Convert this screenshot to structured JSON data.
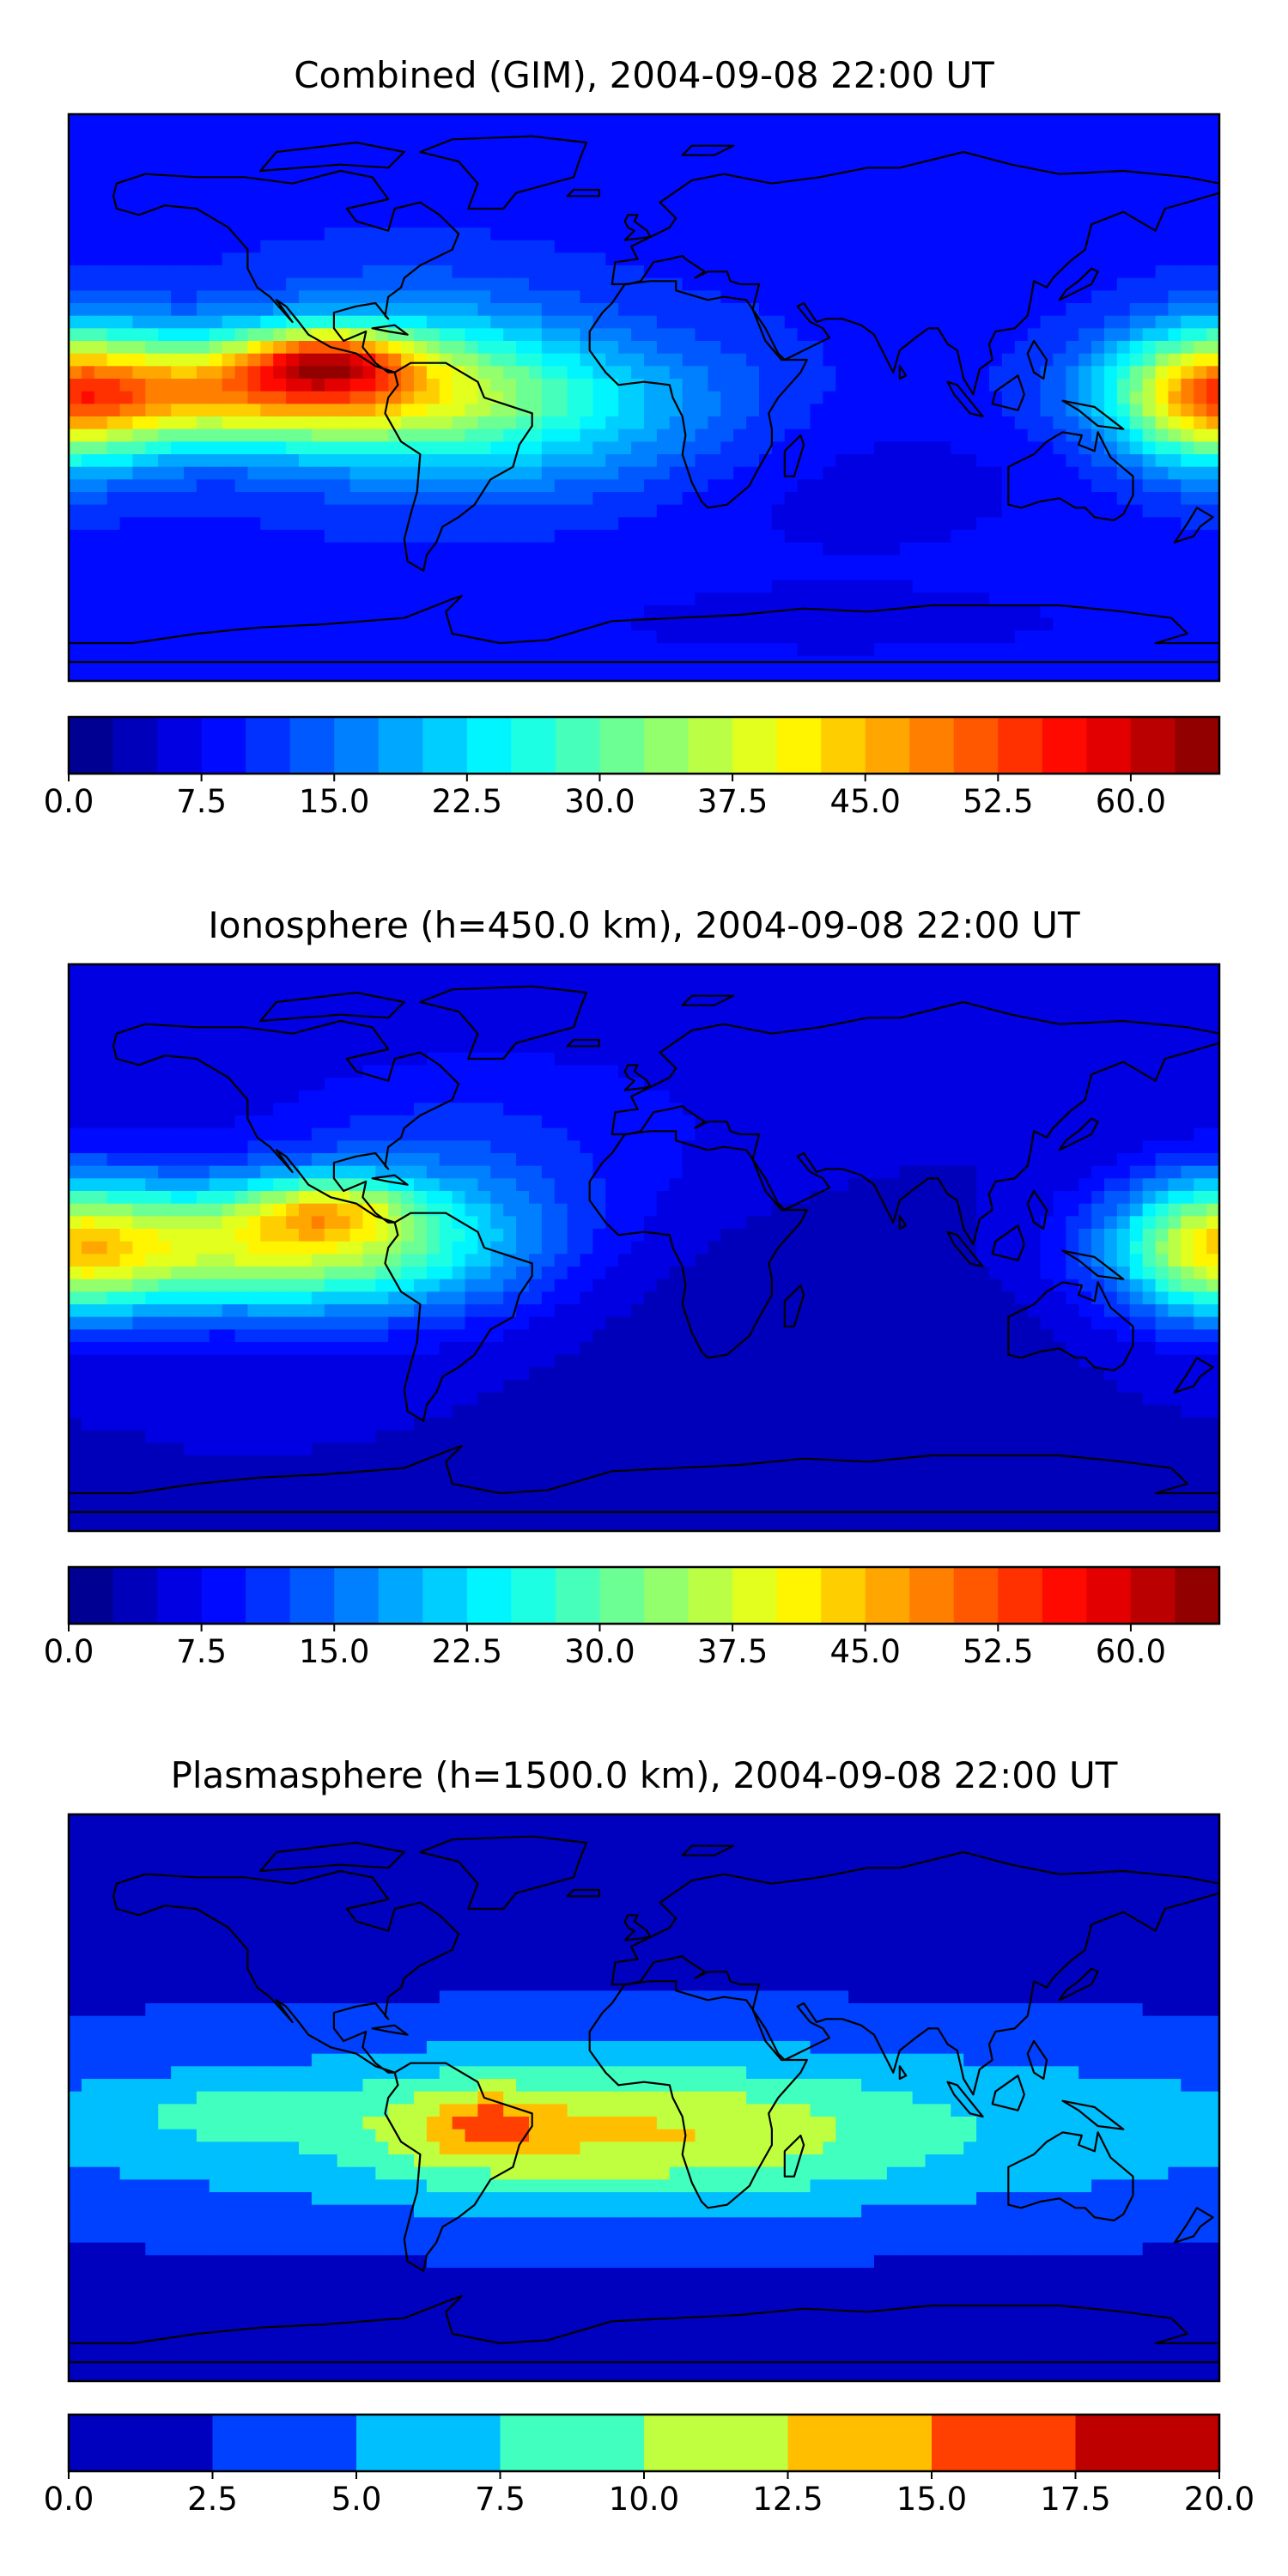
{
  "chart_data": [
    {
      "type": "heatmap",
      "title": "Combined (GIM), 2004-09-08 22:00 UT",
      "xlabel": "",
      "ylabel": "",
      "colormap": "jet",
      "colorbar": {
        "range": [
          0.0,
          64.0
        ],
        "levels": [
          0.0,
          2.5,
          5.0,
          7.5,
          10.0,
          12.5,
          15.0,
          17.5,
          20.0,
          22.5,
          25.0,
          27.5,
          30.0,
          32.5,
          35.0,
          37.5,
          40.0,
          42.5,
          45.0,
          47.5,
          50.0,
          52.5,
          55.0,
          57.5,
          60.0,
          62.5,
          65.0
        ],
        "ticks": [
          "0.0",
          "7.5",
          "15.0",
          "22.5",
          "30.0",
          "37.5",
          "45.0",
          "52.5",
          "60.0"
        ],
        "tick_values": [
          0.0,
          7.5,
          15.0,
          22.5,
          30.0,
          37.5,
          45.0,
          52.5,
          60.0
        ]
      },
      "field": {
        "background": 9,
        "blobs": [
          {
            "lon": -125,
            "lat": 2,
            "slon": 50,
            "slat": 12,
            "amp": 32
          },
          {
            "lon": -100,
            "lat": 12,
            "slon": 18,
            "slat": 7,
            "amp": 22
          },
          {
            "lon": -75,
            "lat": 5,
            "slon": 40,
            "slat": 22,
            "amp": 12
          },
          {
            "lon": -20,
            "lat": -5,
            "slon": 45,
            "slat": 18,
            "amp": 10
          },
          {
            "lon": 178,
            "lat": 0,
            "slon": 22,
            "slat": 16,
            "amp": 28
          },
          {
            "lon": 60,
            "lat": -25,
            "slon": 50,
            "slat": 20,
            "amp": -3
          },
          {
            "lon": 60,
            "lat": -72,
            "slon": 80,
            "slat": 10,
            "amp": -2
          }
        ]
      }
    },
    {
      "type": "heatmap",
      "title": "Ionosphere  (h=450.0 km), 2004-09-08 22:00 UT",
      "xlabel": "",
      "ylabel": "",
      "colormap": "jet",
      "colorbar": {
        "range": [
          0.0,
          64.0
        ],
        "levels": [
          0.0,
          2.5,
          5.0,
          7.5,
          10.0,
          12.5,
          15.0,
          17.5,
          20.0,
          22.5,
          25.0,
          27.5,
          30.0,
          32.5,
          35.0,
          37.5,
          40.0,
          42.5,
          45.0,
          47.5,
          50.0,
          52.5,
          55.0,
          57.5,
          60.0,
          62.5,
          65.0
        ],
        "ticks": [
          "0.0",
          "7.5",
          "15.0",
          "22.5",
          "30.0",
          "37.5",
          "45.0",
          "52.5",
          "60.0"
        ],
        "tick_values": [
          0.0,
          7.5,
          15.0,
          22.5,
          30.0,
          37.5,
          45.0,
          52.5,
          60.0
        ]
      },
      "field": {
        "background": 5,
        "blobs": [
          {
            "lon": -125,
            "lat": 0,
            "slon": 48,
            "slat": 14,
            "amp": 30
          },
          {
            "lon": -100,
            "lat": 12,
            "slon": 18,
            "slat": 7,
            "amp": 16
          },
          {
            "lon": -70,
            "lat": 5,
            "slon": 35,
            "slat": 22,
            "amp": 8
          },
          {
            "lon": 178,
            "lat": 0,
            "slon": 22,
            "slat": 16,
            "amp": 24
          },
          {
            "lon": -40,
            "lat": 35,
            "slon": 60,
            "slat": 25,
            "amp": 4
          },
          {
            "lon": 40,
            "lat": -20,
            "slon": 60,
            "slat": 30,
            "amp": -2
          }
        ]
      }
    },
    {
      "type": "heatmap",
      "title": "Plasmasphere (h=1500.0 km), 2004-09-08 22:00 UT",
      "xlabel": "",
      "ylabel": "",
      "colormap": "jet",
      "colorbar": {
        "range": [
          0.0,
          20.0
        ],
        "levels": [
          0.0,
          2.5,
          5.0,
          7.5,
          10.0,
          12.5,
          15.0,
          17.5,
          20.0
        ],
        "ticks": [
          "0.0",
          "2.5",
          "5.0",
          "7.5",
          "10.0",
          "12.5",
          "15.0",
          "17.5",
          "20.0"
        ],
        "tick_values": [
          0.0,
          2.5,
          5.0,
          7.5,
          10.0,
          12.5,
          15.0,
          17.5,
          20.0
        ]
      },
      "field": {
        "background": 1.5,
        "blobs": [
          {
            "lon": 0,
            "lat": -10,
            "slon": 180,
            "slat": 22,
            "amp": 6.5
          },
          {
            "lon": 10,
            "lat": -12,
            "slon": 45,
            "slat": 14,
            "amp": 4.5
          },
          {
            "lon": -55,
            "lat": -10,
            "slon": 25,
            "slat": 12,
            "amp": 4.0
          },
          {
            "lon": -48,
            "lat": -8,
            "slon": 10,
            "slat": 6,
            "amp": 3.5
          },
          {
            "lon": -130,
            "lat": -5,
            "slon": 25,
            "slat": 6,
            "amp": 2.5
          }
        ]
      }
    }
  ],
  "map": {
    "projection": "PlateCarree",
    "lon_range": [
      -180,
      180
    ],
    "lat_range": [
      -90,
      90
    ],
    "coastline_color": "#000000"
  }
}
